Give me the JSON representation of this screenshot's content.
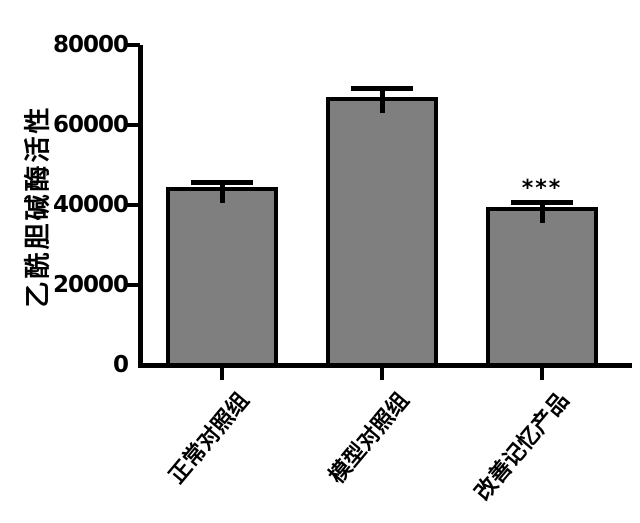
{
  "chart_data": {
    "type": "bar",
    "title": "",
    "ylabel": "乙酰胆碱酶活性",
    "xlabel": "",
    "categories": [
      "正常对照组",
      "模型对照组",
      "改善记忆产品"
    ],
    "values": [
      44000,
      66500,
      39000
    ],
    "errors_plus": [
      1800,
      2800,
      1800
    ],
    "annotations": [
      "",
      "",
      "***"
    ],
    "ylim": [
      0,
      80000
    ],
    "yticks": [
      0,
      20000,
      40000,
      60000,
      80000
    ],
    "ytick_labels": [
      "0",
      "20000",
      "40000",
      "60000",
      "80000"
    ],
    "bar_fill_color": "#7f7f7f",
    "bar_border_color": "#000000",
    "error_bar_color": "#000000",
    "text_color": "#000000",
    "background_color": "#ffffff",
    "grid": false,
    "legend_position": null,
    "x_tick_label_rotation_deg": 50
  }
}
